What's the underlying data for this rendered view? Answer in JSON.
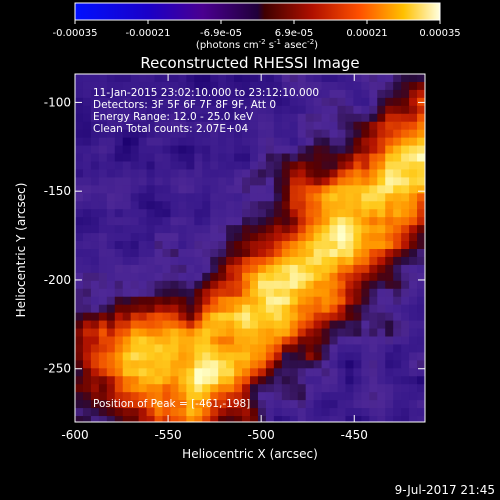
{
  "colorbar": {
    "ticks": [
      "-0.00035",
      "-0.00021",
      "-6.9e-05",
      "6.9e-05",
      "0.00021",
      "0.00035"
    ],
    "unit_label": "(photons cm",
    "unit_exp1": "-2",
    "unit_mid": " s",
    "unit_exp2": "-1",
    "unit_end": " asec",
    "unit_exp3": "-2",
    "unit_close": ")"
  },
  "image": {
    "title": "Reconstructed RHESSI Image",
    "info_lines": [
      "11-Jan-2015 23:02:10.000 to 23:12:10.000",
      "Detectors: 3F 5F 6F 7F 8F 9F, Att 0",
      "Energy Range: 12.0 - 25.0 keV",
      "Clean    Total counts: 2.07E+04"
    ],
    "peak_text": "Position of Peak = [-461,-198]"
  },
  "axes": {
    "xlabel": "Heliocentric X (arcsec)",
    "ylabel": "Heliocentric Y (arcsec)",
    "xticks": [
      "-600",
      "-550",
      "-500",
      "-450"
    ],
    "yticks": [
      "-100",
      "-150",
      "-200",
      "-250"
    ],
    "x_tick_values": [
      -600,
      -550,
      -500,
      -450
    ],
    "y_tick_values": [
      -100,
      -150,
      -200,
      -250
    ],
    "xlim": [
      -600,
      -412
    ],
    "ylim": [
      -280,
      -84
    ]
  },
  "timestamp": "9-Jul-2017 21:45"
}
